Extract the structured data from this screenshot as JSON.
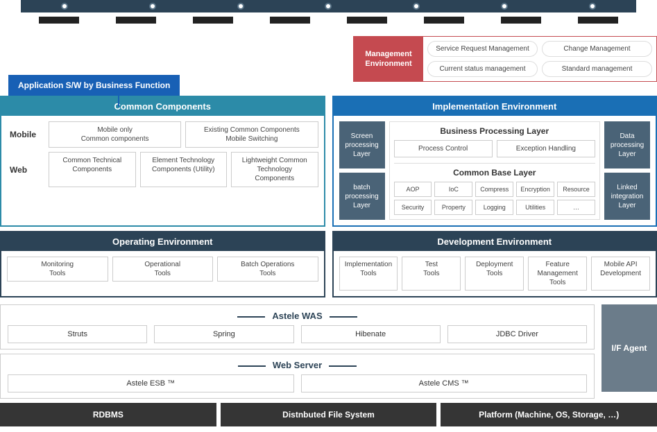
{
  "colors": {
    "timeline_bar": "#2c4356",
    "badge_bg": "#1860b5",
    "mgmt_border": "#c54a50",
    "common_header": "#2c8ba8",
    "impl_header": "#1a6fb5",
    "env_header": "#2c4356",
    "side_box": "#4a6377",
    "if_agent": "#6b7c8a",
    "bottom_bar": "#353535"
  },
  "timeline": {
    "dot_count": 7,
    "label_count": 8
  },
  "app_sw_badge": "Application S/W by Business Function",
  "mgmt_env": {
    "label": "Management Environment",
    "items": [
      "Service Request Management",
      "Change Management",
      "Current status management",
      "Standard management"
    ]
  },
  "common_components": {
    "title": "Common Components",
    "rows": [
      {
        "label": "Mobile",
        "items": [
          "Mobile only\nCommon components",
          "Existing Common Components\nMobile Switching"
        ]
      },
      {
        "label": "Web",
        "items": [
          "Common Technical\nComponents",
          "Element Technology\nComponents (Utility)"
        ],
        "wide": "Lightweight Common Technology Components"
      }
    ]
  },
  "implementation": {
    "title": "Implementation Environment",
    "left_side": [
      "Screen processing Layer",
      "batch processing Layer"
    ],
    "right_side": [
      "Data processing Layer",
      "Linked integration Layer"
    ],
    "business_layer": {
      "title": "Business Processing Layer",
      "items": [
        "Process Control",
        "Exception Handling"
      ]
    },
    "common_base": {
      "title": "Common Base Layer",
      "cells": [
        "AOP",
        "IoC",
        "Compress",
        "Encryption",
        "Resource",
        "Security",
        "Property",
        "Logging",
        "Utilities",
        "…"
      ]
    }
  },
  "operating_env": {
    "title": "Operating Environment",
    "items": [
      "Monitoring\nTools",
      "Operational\nTools",
      "Batch Operations\nTools"
    ]
  },
  "development_env": {
    "title": "Development Environment",
    "items": [
      "Implementation\nTools",
      "Test\nTools",
      "Deployment\nTools",
      "Feature Management\nTools",
      "Mobile API\nDevelopment"
    ]
  },
  "astele_was": {
    "title": "Astele WAS",
    "items": [
      "Struts",
      "Spring",
      "Hibenate",
      "JDBC Driver"
    ]
  },
  "web_server": {
    "title": "Web Server",
    "items": [
      "Astele ESB ™",
      "Astele CMS ™"
    ]
  },
  "if_agent": "I/F Agent",
  "bottom": [
    "RDBMS",
    "Distnbuted File System",
    "Platform (Machine, OS, Storage, …)"
  ]
}
